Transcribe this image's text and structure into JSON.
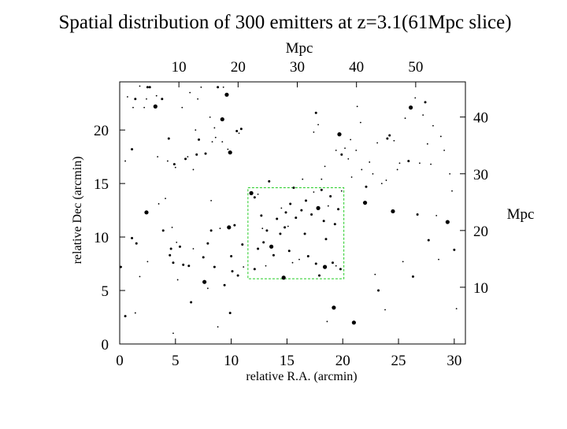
{
  "chart_data": {
    "type": "scatter",
    "title": "Spatial distribution of 300 emitters at z=3.1(61Mpc slice)",
    "xlabel": "relative R.A.  (arcmin)",
    "ylabel": "relative Dec (arcmin)",
    "x2label": "Mpc",
    "y2label": "Mpc",
    "xlim": [
      0,
      31
    ],
    "ylim": [
      0,
      24.5
    ],
    "x2lim": [
      0,
      58.4
    ],
    "y2lim": [
      0,
      46.2
    ],
    "x_ticks": [
      0,
      5,
      10,
      15,
      20,
      25,
      30
    ],
    "y_ticks": [
      0,
      5,
      10,
      15,
      20
    ],
    "x2_ticks": [
      10,
      20,
      30,
      40,
      50
    ],
    "y2_ticks": [
      10,
      20,
      30,
      40
    ],
    "grid": false,
    "highlight_box": {
      "x": [
        11.5,
        20.1
      ],
      "y": [
        6.1,
        14.6
      ],
      "color": "#22cc22"
    },
    "points": [
      [
        0.1,
        7.2,
        2
      ],
      [
        0.5,
        2.6,
        2
      ],
      [
        0.5,
        17.1,
        1
      ],
      [
        0.7,
        23.1,
        1
      ],
      [
        1.1,
        9.9,
        2
      ],
      [
        1.1,
        18.2,
        2
      ],
      [
        1.2,
        22.1,
        1
      ],
      [
        1.4,
        22.9,
        2
      ],
      [
        1.4,
        2.9,
        1
      ],
      [
        1.5,
        9.4,
        2
      ],
      [
        1.8,
        6.3,
        1
      ],
      [
        1.8,
        24.1,
        1
      ],
      [
        2.2,
        22.1,
        1
      ],
      [
        2.4,
        22.9,
        1
      ],
      [
        2.4,
        12.3,
        3
      ],
      [
        2.5,
        24.0,
        2
      ],
      [
        2.5,
        7.7,
        1
      ],
      [
        2.7,
        24.0,
        2
      ],
      [
        3.2,
        22.2,
        3
      ],
      [
        3.3,
        23.2,
        1
      ],
      [
        3.4,
        17.5,
        1
      ],
      [
        3.5,
        13.1,
        1
      ],
      [
        3.8,
        22.9,
        2
      ],
      [
        3.9,
        10.6,
        2
      ],
      [
        4.1,
        13.6,
        1
      ],
      [
        4.3,
        17.1,
        1
      ],
      [
        4.4,
        19.2,
        2
      ],
      [
        4.5,
        8.3,
        2
      ],
      [
        4.6,
        8.9,
        2
      ],
      [
        4.7,
        10.9,
        1
      ],
      [
        4.8,
        7.6,
        2
      ],
      [
        4.8,
        1.0,
        1
      ],
      [
        4.9,
        16.8,
        2
      ],
      [
        5.0,
        16.5,
        1
      ],
      [
        5.1,
        9.5,
        1
      ],
      [
        5.2,
        6.0,
        1
      ],
      [
        5.4,
        9.1,
        2
      ],
      [
        5.6,
        22.1,
        1
      ],
      [
        5.7,
        7.4,
        2
      ],
      [
        5.9,
        17.3,
        2
      ],
      [
        6.1,
        17.5,
        1
      ],
      [
        6.2,
        7.3,
        2
      ],
      [
        6.3,
        23.5,
        1
      ],
      [
        6.4,
        3.9,
        2
      ],
      [
        6.6,
        8.9,
        1
      ],
      [
        6.6,
        16.3,
        1
      ],
      [
        6.8,
        20.0,
        1
      ],
      [
        6.9,
        17.7,
        2
      ],
      [
        7.0,
        22.9,
        1
      ],
      [
        7.1,
        19.1,
        2
      ],
      [
        7.3,
        24.0,
        1
      ],
      [
        7.5,
        8.1,
        2
      ],
      [
        7.6,
        5.8,
        3
      ],
      [
        7.7,
        17.8,
        2
      ],
      [
        7.9,
        5.2,
        1
      ],
      [
        7.9,
        9.4,
        2
      ],
      [
        8.1,
        21.2,
        1
      ],
      [
        8.2,
        10.6,
        2
      ],
      [
        8.2,
        13.4,
        1
      ],
      [
        8.3,
        18.9,
        1
      ],
      [
        8.5,
        20.2,
        1
      ],
      [
        8.5,
        7.2,
        2
      ],
      [
        8.6,
        19.3,
        1
      ],
      [
        8.8,
        24.0,
        2
      ],
      [
        8.8,
        1.6,
        1
      ],
      [
        9.0,
        10.8,
        1
      ],
      [
        9.2,
        18.9,
        1
      ],
      [
        9.2,
        21.0,
        3
      ],
      [
        9.3,
        24.0,
        1
      ],
      [
        9.4,
        5.5,
        2
      ],
      [
        9.6,
        23.3,
        3
      ],
      [
        9.7,
        18.2,
        1
      ],
      [
        9.8,
        10.9,
        3
      ],
      [
        9.9,
        17.9,
        3
      ],
      [
        9.9,
        2.9,
        2
      ],
      [
        10.0,
        8.2,
        2
      ],
      [
        10.1,
        6.8,
        2
      ],
      [
        10.3,
        11.1,
        2
      ],
      [
        10.5,
        19.9,
        2
      ],
      [
        10.6,
        6.4,
        2
      ],
      [
        10.7,
        19.7,
        1
      ],
      [
        10.9,
        20.1,
        2
      ],
      [
        11.0,
        9.3,
        2
      ],
      [
        11.1,
        7.2,
        1
      ],
      [
        11.8,
        14.1,
        3
      ],
      [
        12.1,
        7.0,
        2
      ],
      [
        12.1,
        13.7,
        2
      ],
      [
        12.4,
        8.9,
        2
      ],
      [
        12.4,
        14.0,
        1
      ],
      [
        12.7,
        12.0,
        2
      ],
      [
        12.8,
        10.8,
        1
      ],
      [
        12.9,
        9.5,
        2
      ],
      [
        13.1,
        7.3,
        1
      ],
      [
        13.2,
        10.6,
        2
      ],
      [
        13.4,
        15.2,
        2
      ],
      [
        13.6,
        9.1,
        3
      ],
      [
        13.8,
        8.3,
        2
      ],
      [
        14.1,
        11.7,
        2
      ],
      [
        14.4,
        10.3,
        2
      ],
      [
        14.5,
        12.7,
        1
      ],
      [
        14.7,
        6.2,
        3
      ],
      [
        14.8,
        10.9,
        2
      ],
      [
        14.9,
        12.3,
        2
      ],
      [
        15.1,
        11.0,
        1
      ],
      [
        15.2,
        8.7,
        2
      ],
      [
        15.3,
        13.1,
        2
      ],
      [
        15.5,
        7.6,
        1
      ],
      [
        15.6,
        14.6,
        2
      ],
      [
        15.8,
        11.8,
        2
      ],
      [
        16.1,
        7.9,
        1
      ],
      [
        16.3,
        12.5,
        2
      ],
      [
        16.4,
        15.4,
        1
      ],
      [
        16.6,
        10.3,
        2
      ],
      [
        16.7,
        13.4,
        2
      ],
      [
        16.9,
        8.2,
        2
      ],
      [
        17.2,
        12.1,
        2
      ],
      [
        17.4,
        14.2,
        1
      ],
      [
        17.6,
        7.5,
        2
      ],
      [
        17.8,
        12.7,
        3
      ],
      [
        17.9,
        6.4,
        2
      ],
      [
        18.1,
        14.4,
        2
      ],
      [
        18.3,
        11.5,
        2
      ],
      [
        18.4,
        7.2,
        3
      ],
      [
        18.5,
        9.8,
        2
      ],
      [
        18.7,
        12.9,
        1
      ],
      [
        18.9,
        13.8,
        2
      ],
      [
        19.1,
        7.6,
        2
      ],
      [
        19.3,
        11.2,
        2
      ],
      [
        19.4,
        7.3,
        1
      ],
      [
        19.6,
        12.6,
        2
      ],
      [
        19.8,
        7.0,
        2
      ],
      [
        19.9,
        14.3,
        1
      ],
      [
        17.4,
        19.8,
        1
      ],
      [
        17.6,
        21.6,
        2
      ],
      [
        17.8,
        20.5,
        1
      ],
      [
        18.1,
        15.4,
        1
      ],
      [
        18.4,
        16.6,
        1
      ],
      [
        18.6,
        2.1,
        1
      ],
      [
        19.2,
        3.4,
        3
      ],
      [
        19.4,
        18.1,
        1
      ],
      [
        19.7,
        19.6,
        3
      ],
      [
        19.9,
        17.7,
        2
      ],
      [
        20.2,
        18.3,
        1
      ],
      [
        20.5,
        17.3,
        1
      ],
      [
        20.7,
        19.1,
        1
      ],
      [
        20.8,
        15.6,
        1
      ],
      [
        21.0,
        2.0,
        3
      ],
      [
        21.2,
        18.1,
        1
      ],
      [
        21.3,
        22.2,
        1
      ],
      [
        21.6,
        20.7,
        1
      ],
      [
        21.7,
        16.3,
        1
      ],
      [
        22.0,
        13.2,
        3
      ],
      [
        22.1,
        14.7,
        2
      ],
      [
        22.4,
        17.0,
        1
      ],
      [
        22.7,
        15.9,
        1
      ],
      [
        22.9,
        6.5,
        1
      ],
      [
        23.1,
        18.8,
        1
      ],
      [
        23.2,
        5.0,
        2
      ],
      [
        23.5,
        15.0,
        1
      ],
      [
        23.8,
        3.2,
        1
      ],
      [
        23.9,
        15.3,
        1
      ],
      [
        24.0,
        19.2,
        2
      ],
      [
        24.2,
        19.5,
        2
      ],
      [
        24.5,
        12.4,
        3
      ],
      [
        24.6,
        19.0,
        1
      ],
      [
        24.9,
        16.3,
        1
      ],
      [
        25.1,
        16.9,
        1
      ],
      [
        25.4,
        7.7,
        1
      ],
      [
        25.6,
        21.1,
        1
      ],
      [
        25.9,
        17.1,
        2
      ],
      [
        26.1,
        22.1,
        3
      ],
      [
        26.3,
        6.3,
        2
      ],
      [
        26.5,
        23.0,
        1
      ],
      [
        26.7,
        12.1,
        2
      ],
      [
        26.9,
        16.9,
        1
      ],
      [
        27.2,
        21.4,
        1
      ],
      [
        27.4,
        22.6,
        2
      ],
      [
        27.6,
        18.7,
        1
      ],
      [
        27.7,
        9.7,
        2
      ],
      [
        27.9,
        16.8,
        1
      ],
      [
        28.1,
        20.4,
        1
      ],
      [
        28.4,
        12.0,
        1
      ],
      [
        28.6,
        7.9,
        1
      ],
      [
        28.8,
        19.4,
        1
      ],
      [
        29.1,
        18.1,
        1
      ],
      [
        29.4,
        11.4,
        3
      ],
      [
        29.6,
        15.9,
        1
      ],
      [
        29.8,
        14.3,
        1
      ],
      [
        30.0,
        8.8,
        2
      ],
      [
        30.2,
        3.3,
        1
      ]
    ]
  }
}
